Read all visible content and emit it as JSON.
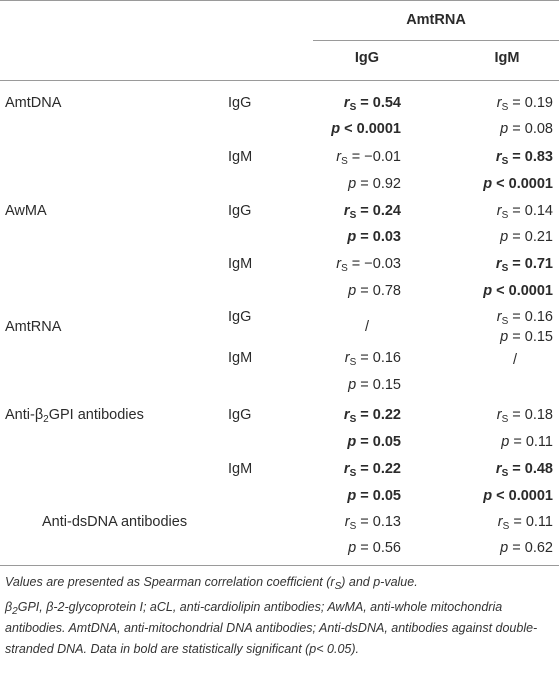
{
  "header": {
    "group": "AmtRNA",
    "columns": [
      "IgG",
      "IgM"
    ]
  },
  "table": {
    "rows": [
      {
        "label": "AmtDNA",
        "isotype": "IgG",
        "cells": [
          {
            "symbol": "r",
            "sub": "S",
            "op": "=",
            "num": "0.54",
            "bold": true
          },
          {
            "symbol": "r",
            "sub": "S",
            "op": "=",
            "num": "0.19"
          }
        ]
      },
      {
        "cells": [
          {
            "symbol": "p",
            "op": "<",
            "num": "0.0001",
            "bold": true
          },
          {
            "symbol": "p",
            "op": "=",
            "num": "0.08"
          }
        ]
      },
      {
        "isotype": "IgM",
        "cells": [
          {
            "symbol": "r",
            "sub": "S",
            "op": "=",
            "num": "−0.01"
          },
          {
            "symbol": "r",
            "sub": "S",
            "op": "=",
            "num": "0.83",
            "bold": true
          }
        ]
      },
      {
        "cells": [
          {
            "symbol": "p",
            "op": "=",
            "num": "0.92"
          },
          {
            "symbol": "p",
            "op": "<",
            "num": "0.0001",
            "bold": true
          }
        ]
      },
      {
        "label": "AwMA",
        "isotype": "IgG",
        "cells": [
          {
            "symbol": "r",
            "sub": "S",
            "op": "=",
            "num": "0.24",
            "bold": true
          },
          {
            "symbol": "r",
            "sub": "S",
            "op": "=",
            "num": "0.14"
          }
        ]
      },
      {
        "cells": [
          {
            "symbol": "p",
            "op": "=",
            "num": "0.03",
            "bold": true
          },
          {
            "symbol": "p",
            "op": "=",
            "num": "0.21"
          }
        ]
      },
      {
        "isotype": "IgM",
        "cells": [
          {
            "symbol": "r",
            "sub": "S",
            "op": "=",
            "num": "−0.03"
          },
          {
            "symbol": "r",
            "sub": "S",
            "op": "=",
            "num": "0.71",
            "bold": true
          }
        ]
      },
      {
        "cells": [
          {
            "symbol": "p",
            "op": "=",
            "num": "0.78"
          },
          {
            "symbol": "p",
            "op": "<",
            "num": "0.0001",
            "bold": true
          }
        ]
      },
      {
        "label": "AmtRNA",
        "isotype": "IgG",
        "cells": [
          {
            "text": "/"
          },
          {
            "lines": [
              {
                "symbol": "r",
                "sub": "S",
                "op": "=",
                "num": "0.16"
              },
              {
                "symbol": "p",
                "op": "=",
                "num": "0.15"
              }
            ]
          }
        ]
      },
      {
        "isotype": "IgM",
        "cells": [
          {
            "lines": [
              {
                "symbol": "r",
                "sub": "S",
                "op": "=",
                "num": "0.16"
              },
              {
                "symbol": "p",
                "op": "=",
                "num": "0.15"
              }
            ]
          },
          {
            "text": "/"
          }
        ]
      },
      {
        "label": {
          "pre": "Anti-β",
          "sub": "2",
          "post": "GPI antibodies"
        },
        "isotype": "IgG",
        "cells": [
          {
            "symbol": "r",
            "sub": "S",
            "op": "=",
            "num": "0.22",
            "bold": true
          },
          {
            "symbol": "r",
            "sub": "S",
            "op": "=",
            "num": "0.18"
          }
        ]
      },
      {
        "cells": [
          {
            "symbol": "p",
            "op": "=",
            "num": "0.05",
            "bold": true
          },
          {
            "symbol": "p",
            "op": "=",
            "num": "0.11"
          }
        ]
      },
      {
        "isotype": "IgM",
        "cells": [
          {
            "symbol": "r",
            "sub": "S",
            "op": "=",
            "num": "0.22",
            "bold": true
          },
          {
            "symbol": "r",
            "sub": "S",
            "op": "=",
            "num": "0.48",
            "bold": true
          }
        ]
      },
      {
        "cells": [
          {
            "symbol": "p",
            "op": "=",
            "num": "0.05",
            "bold": true
          },
          {
            "symbol": "p",
            "op": "<",
            "num": "0.0001",
            "bold": true
          }
        ]
      },
      {
        "label": "Anti-dsDNA antibodies",
        "cells": [
          {
            "symbol": "r",
            "sub": "S",
            "op": "=",
            "num": "0.13"
          },
          {
            "symbol": "r",
            "sub": "S",
            "op": "=",
            "num": "0.11"
          }
        ]
      },
      {
        "cells": [
          {
            "symbol": "p",
            "op": "=",
            "num": "0.56"
          },
          {
            "symbol": "p",
            "op": "=",
            "num": "0.62"
          }
        ]
      }
    ]
  },
  "footnotes": [
    {
      "pre": "Values are presented as Spearman correlation coefficient (r",
      "sub": "S",
      "post": ") and p-value."
    },
    {
      "pre": "β",
      "sub": "2",
      "post": "GPI, β-2-glycoprotein I; aCL, anti-cardiolipin antibodies; AwMA, anti-whole mitochondria antibodies. AmtDNA, anti-mitochondrial DNA antibodies; Anti-dsDNA, antibodies against double-stranded DNA. Data in bold are statistically significant (p< 0.05)."
    }
  ]
}
